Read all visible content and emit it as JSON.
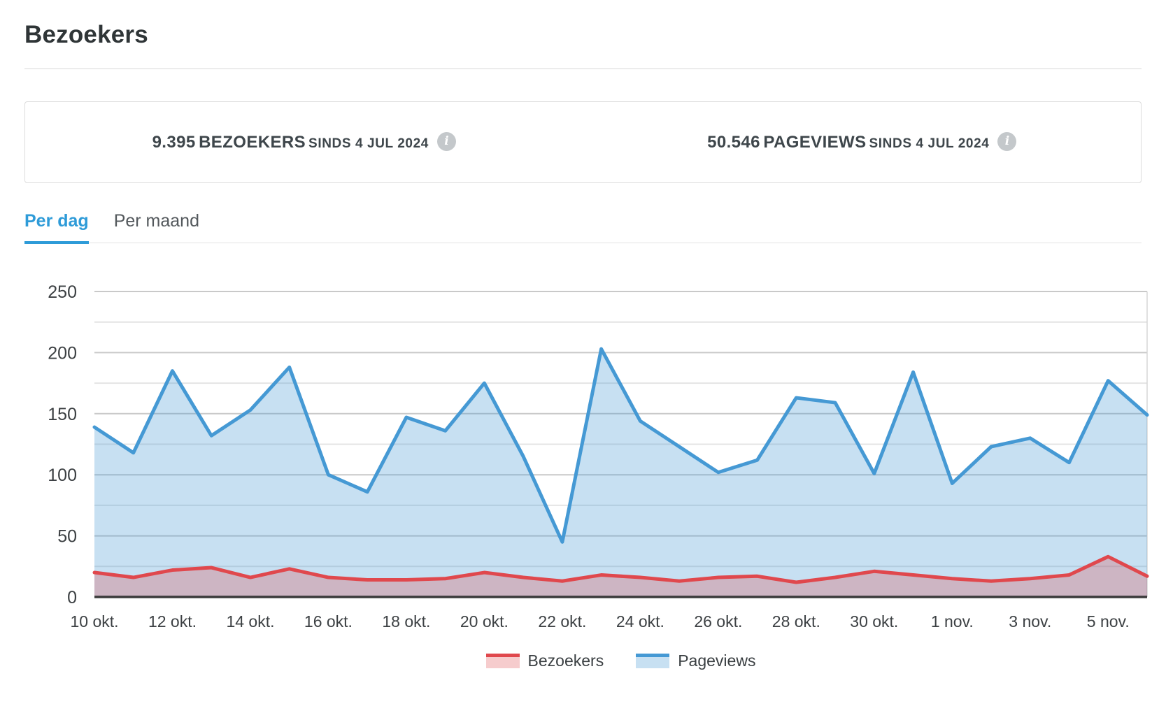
{
  "page": {
    "title": "Bezoekers"
  },
  "stats": {
    "visitors": {
      "value": "9.395",
      "label": "BEZOEKERS",
      "since": "SINDS 4 JUL 2024",
      "info_glyph": "i"
    },
    "pageviews": {
      "value": "50.546",
      "label": "PAGEVIEWS",
      "since": "SINDS 4 JUL 2024",
      "info_glyph": "i"
    }
  },
  "tabs": {
    "per_day": {
      "label": "Per dag",
      "active": true
    },
    "per_month": {
      "label": "Per maand",
      "active": false
    }
  },
  "colors": {
    "accent_blue": "#2e9bd8",
    "axis_text": "#3c4043",
    "grid_major": "#c9c9c9",
    "grid_minor": "#e4e4e4",
    "baseline": "#3a3a3a",
    "plot_right_border": "#d5d5d5"
  },
  "chart_data": {
    "type": "area",
    "title": "",
    "xlabel": "",
    "ylabel": "",
    "ylim": [
      0,
      250
    ],
    "yticks": [
      0,
      50,
      100,
      150,
      200,
      250
    ],
    "grid": true,
    "grid_step": 25,
    "legend_position": "bottom",
    "x_tick_every": 2,
    "x_tick_labels": [
      "10 okt.",
      "12 okt.",
      "14 okt.",
      "16 okt.",
      "18 okt.",
      "20 okt.",
      "22 okt.",
      "24 okt.",
      "26 okt.",
      "28 okt.",
      "30 okt.",
      "1 nov.",
      "3 nov.",
      "5 nov."
    ],
    "series": [
      {
        "name": "Bezoekers",
        "line_color": "#e0484d",
        "fill_color": "rgba(224,72,77,0.28)",
        "values": [
          20,
          16,
          22,
          24,
          16,
          23,
          16,
          14,
          14,
          15,
          20,
          16,
          13,
          18,
          16,
          13,
          16,
          17,
          12,
          16,
          21,
          18,
          15,
          13,
          15,
          18,
          33,
          17
        ]
      },
      {
        "name": "Pageviews",
        "line_color": "#4599d4",
        "fill_color": "rgba(69,153,212,0.30)",
        "values": [
          139,
          118,
          185,
          132,
          153,
          188,
          100,
          86,
          147,
          136,
          175,
          115,
          45,
          203,
          144,
          123,
          102,
          112,
          163,
          159,
          101,
          184,
          93,
          123,
          130,
          110,
          177,
          149
        ]
      }
    ]
  }
}
